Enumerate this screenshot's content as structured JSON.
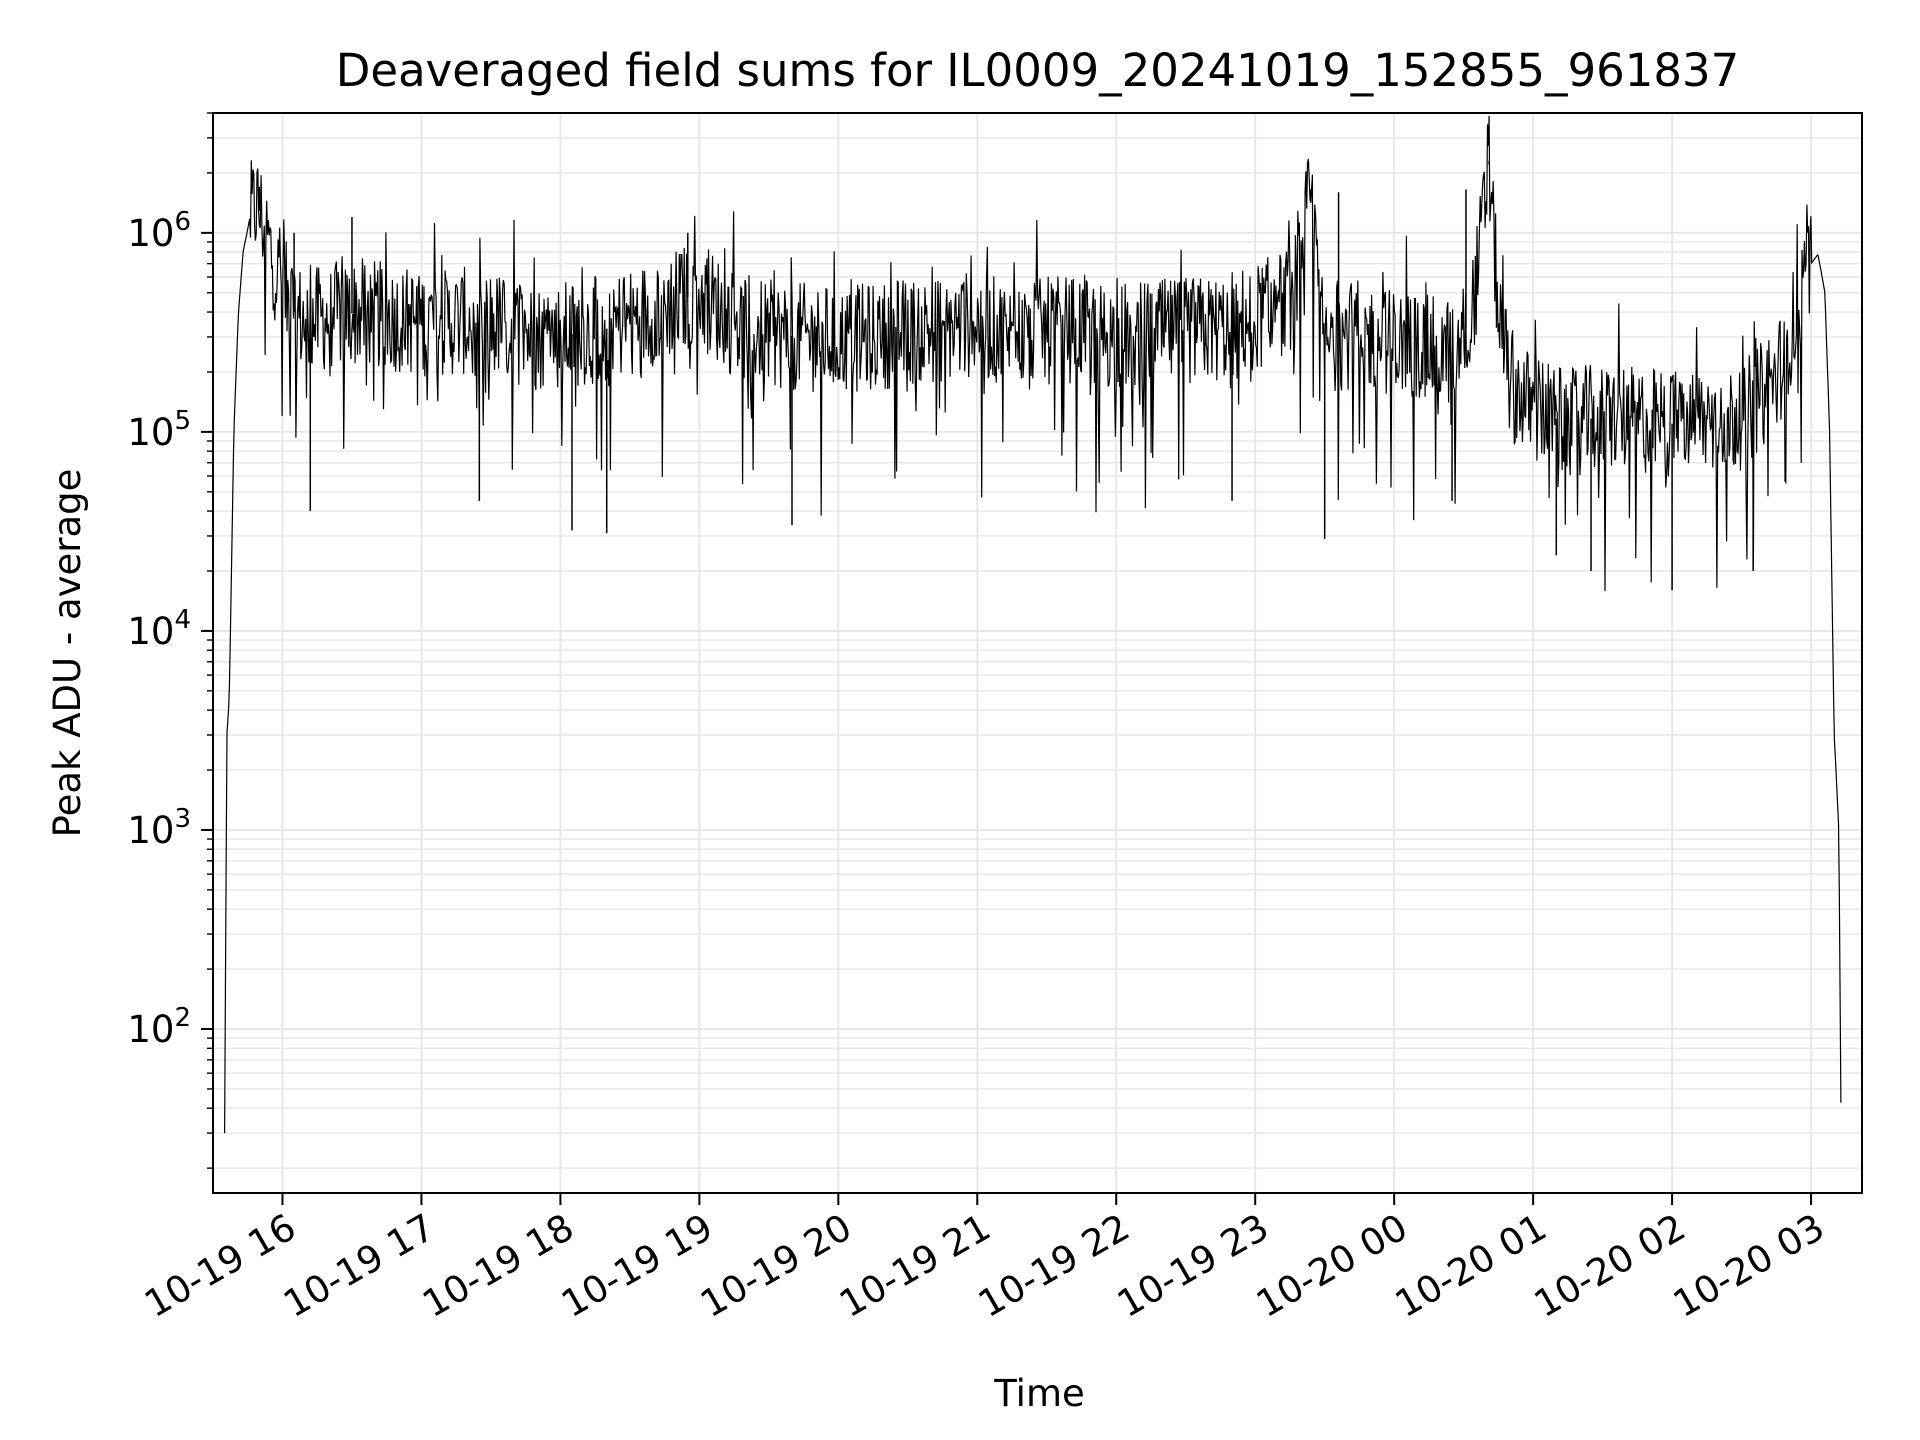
{
  "chart_data": {
    "type": "line",
    "title": "Deaveraged field sums for IL0009_20241019_152855_961837",
    "xlabel": "Time",
    "ylabel": "Peak ADU - average",
    "yscale": "log",
    "ylim": [
      15,
      4000000
    ],
    "xlim": [
      "2024-10-19 15:30",
      "2024-10-20 03:22"
    ],
    "grid": true,
    "legend": "none",
    "colors": {
      "line": "#000000",
      "grid": "#e6e6e6",
      "axes": "#000000",
      "background": "#ffffff"
    },
    "x_ticks": [
      {
        "time": "2024-10-19 16:00",
        "label": "10-19 16"
      },
      {
        "time": "2024-10-19 17:00",
        "label": "10-19 17"
      },
      {
        "time": "2024-10-19 18:00",
        "label": "10-19 18"
      },
      {
        "time": "2024-10-19 19:00",
        "label": "10-19 19"
      },
      {
        "time": "2024-10-19 20:00",
        "label": "10-19 20"
      },
      {
        "time": "2024-10-19 21:00",
        "label": "10-19 21"
      },
      {
        "time": "2024-10-19 22:00",
        "label": "10-19 22"
      },
      {
        "time": "2024-10-19 23:00",
        "label": "10-19 23"
      },
      {
        "time": "2024-10-20 00:00",
        "label": "10-20 00"
      },
      {
        "time": "2024-10-20 01:00",
        "label": "10-20 01"
      },
      {
        "time": "2024-10-20 02:00",
        "label": "10-20 02"
      },
      {
        "time": "2024-10-20 03:00",
        "label": "10-20 03"
      }
    ],
    "y_ticks": [
      {
        "value": 100,
        "base": "10",
        "exp": "2"
      },
      {
        "value": 1000,
        "base": "10",
        "exp": "3"
      },
      {
        "value": 10000,
        "base": "10",
        "exp": "4"
      },
      {
        "value": 100000,
        "base": "10",
        "exp": "5"
      },
      {
        "value": 1000000,
        "base": "10",
        "exp": "6"
      }
    ],
    "series": [
      {
        "x": [
          "2024-10-19 15:35",
          "2024-10-19 15:36",
          "2024-10-19 15:37",
          "2024-10-19 15:39",
          "2024-10-19 15:41",
          "2024-10-19 15:43",
          "2024-10-19 15:46",
          "2024-10-19 15:49",
          "2024-10-19 15:52",
          "2024-10-19 15:55",
          "2024-10-19 15:58",
          "2024-10-19 16:01",
          "2024-10-19 16:05",
          "2024-10-19 16:10",
          "2024-10-19 16:20",
          "2024-10-19 16:35",
          "2024-10-19 16:50",
          "2024-10-19 17:05",
          "2024-10-19 17:20",
          "2024-10-19 17:35",
          "2024-10-19 17:50",
          "2024-10-19 18:05",
          "2024-10-19 18:20",
          "2024-10-19 18:35",
          "2024-10-19 18:50",
          "2024-10-19 19:00",
          "2024-10-19 19:15",
          "2024-10-19 19:30",
          "2024-10-19 19:45",
          "2024-10-19 20:00",
          "2024-10-19 20:15",
          "2024-10-19 20:30",
          "2024-10-19 20:45",
          "2024-10-19 21:00",
          "2024-10-19 21:15",
          "2024-10-19 21:30",
          "2024-10-19 21:45",
          "2024-10-19 22:00",
          "2024-10-19 22:15",
          "2024-10-19 22:30",
          "2024-10-19 22:45",
          "2024-10-19 23:00",
          "2024-10-19 23:15",
          "2024-10-19 23:24",
          "2024-10-19 23:30",
          "2024-10-19 23:35",
          "2024-10-19 23:45",
          "2024-10-20 00:00",
          "2024-10-20 00:15",
          "2024-10-20 00:28",
          "2024-10-20 00:35",
          "2024-10-20 00:41",
          "2024-10-20 00:45",
          "2024-10-20 00:50",
          "2024-10-20 01:00",
          "2024-10-20 01:15",
          "2024-10-20 01:30",
          "2024-10-20 01:45",
          "2024-10-20 02:00",
          "2024-10-20 02:15",
          "2024-10-20 02:30",
          "2024-10-20 02:45",
          "2024-10-20 02:55",
          "2024-10-20 03:00",
          "2024-10-20 03:03",
          "2024-10-20 03:06",
          "2024-10-20 03:08",
          "2024-10-20 03:10",
          "2024-10-20 03:12",
          "2024-10-20 03:13"
        ],
        "y": [
          30,
          3000,
          4500,
          100000,
          400000,
          800000,
          1200000,
          1400000,
          1100000,
          800000,
          600000,
          500000,
          400000,
          350000,
          380000,
          400000,
          370000,
          350000,
          360000,
          340000,
          300000,
          310000,
          330000,
          380000,
          450000,
          500000,
          350000,
          310000,
          300000,
          290000,
          300000,
          320000,
          330000,
          350000,
          300000,
          320000,
          330000,
          300000,
          310000,
          320000,
          330000,
          380000,
          450000,
          1500000,
          250000,
          300000,
          310000,
          280000,
          260000,
          250000,
          500000,
          2200000,
          400000,
          180000,
          130000,
          110000,
          120000,
          115000,
          110000,
          115000,
          120000,
          180000,
          450000,
          700000,
          780000,
          500000,
          100000,
          3000,
          1000,
          30
        ],
        "spikes_high": [
          [
            "2024-10-19 15:50",
            1700000
          ],
          [
            "2024-10-19 16:05",
            1000000
          ],
          [
            "2024-10-19 16:30",
            1200000
          ],
          [
            "2024-10-19 18:55",
            1000000
          ],
          [
            "2024-10-19 23:24",
            1650000
          ],
          [
            "2024-10-19 23:36",
            1600000
          ],
          [
            "2024-10-20 00:31",
            1650000
          ],
          [
            "2024-10-20 00:41",
            2300000
          ]
        ],
        "spikes_low": [
          [
            "2024-10-19 16:12",
            40000
          ],
          [
            "2024-10-19 17:25",
            45000
          ],
          [
            "2024-10-19 18:05",
            32000
          ],
          [
            "2024-10-19 18:20",
            31000
          ],
          [
            "2024-10-19 19:40",
            34000
          ],
          [
            "2024-10-19 22:50",
            45000
          ],
          [
            "2024-10-19 23:30",
            29000
          ],
          [
            "2024-10-20 00:25",
            45000
          ],
          [
            "2024-10-20 01:10",
            24000
          ],
          [
            "2024-10-20 01:25",
            20000
          ],
          [
            "2024-10-20 02:00",
            16000
          ],
          [
            "2024-10-20 02:35",
            20000
          ]
        ]
      }
    ]
  }
}
